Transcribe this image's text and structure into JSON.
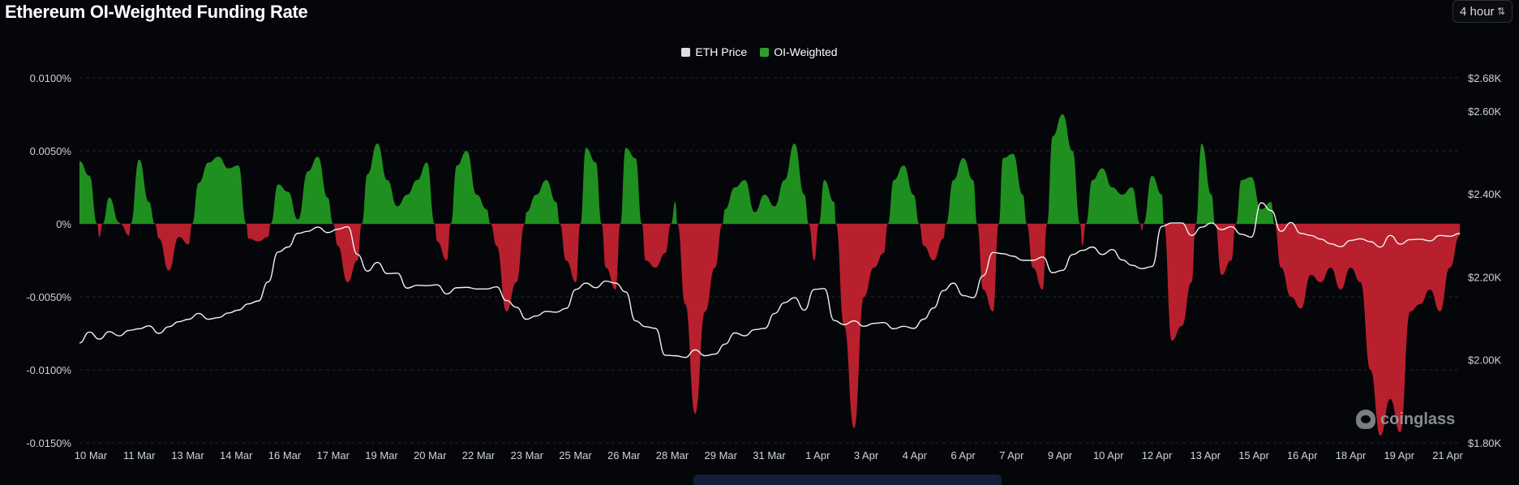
{
  "page": {
    "title": "Ethereum OI-Weighted Funding Rate",
    "interval": "4 hour",
    "watermark": "coinglass"
  },
  "legend": [
    {
      "label": "ETH Price",
      "color": "#e0e0e0"
    },
    {
      "label": "OI-Weighted",
      "color": "#2e9e2e"
    }
  ],
  "colors": {
    "positive": "#1f8f1f",
    "negative": "#b8202e",
    "price_line": "#f2f2f2",
    "grid": "#23262d"
  },
  "chart_data": {
    "type": "area",
    "x_ticks": [
      "10 Mar",
      "11 Mar",
      "13 Mar",
      "14 Mar",
      "16 Mar",
      "17 Mar",
      "19 Mar",
      "20 Mar",
      "22 Mar",
      "23 Mar",
      "25 Mar",
      "26 Mar",
      "28 Mar",
      "29 Mar",
      "31 Mar",
      "1 Apr",
      "3 Apr",
      "4 Apr",
      "6 Apr",
      "7 Apr",
      "9 Apr",
      "10 Apr",
      "12 Apr",
      "13 Apr",
      "15 Apr",
      "16 Apr",
      "18 Apr",
      "19 Apr",
      "21 Apr"
    ],
    "y_left_ticks": [
      "0.0100%",
      "0.0050%",
      "0%",
      "-0.0050%",
      "-0.0100%",
      "-0.0150%"
    ],
    "y_left_values": [
      0.01,
      0.005,
      0,
      -0.005,
      -0.01,
      -0.015
    ],
    "y_left_range": [
      -0.015,
      0.01
    ],
    "y_right_ticks": [
      "$2.68K",
      "$2.60K",
      "$2.40K",
      "$2.20K",
      "$2.00K",
      "$1.80K"
    ],
    "y_right_values": [
      2680,
      2600,
      2400,
      2200,
      2000,
      1800
    ],
    "y_right_range": [
      1800,
      2680
    ],
    "grid": true,
    "legend_position": "top-center",
    "series": [
      {
        "name": "OI-Weighted",
        "unit": "%",
        "values": [
          0.0043,
          0.0033,
          -0.0009,
          0.0018,
          0.0001,
          -0.0008,
          0.0044,
          0.0015,
          -0.001,
          -0.0032,
          -0.0009,
          -0.0014,
          0.0028,
          0.0042,
          0.0046,
          0.0038,
          0.004,
          -0.001,
          -0.0012,
          -0.0009,
          0.0027,
          0.0022,
          0.0003,
          0.0036,
          0.0046,
          0.0018,
          -0.0015,
          -0.004,
          -0.0025,
          0.0034,
          0.0055,
          0.003,
          0.0012,
          0.002,
          0.003,
          0.0042,
          -0.0012,
          -0.0025,
          0.004,
          0.005,
          0.002,
          0.001,
          -0.0015,
          -0.006,
          -0.004,
          0.0008,
          0.002,
          0.003,
          0.0015,
          -0.0025,
          -0.004,
          0.0052,
          0.0042,
          -0.003,
          -0.0045,
          0.0052,
          0.0045,
          -0.0025,
          -0.003,
          -0.002,
          0.0015,
          -0.0055,
          -0.013,
          -0.006,
          -0.003,
          0.001,
          0.0025,
          0.003,
          0.0008,
          0.002,
          0.0012,
          0.003,
          0.0055,
          0.002,
          -0.0025,
          0.003,
          0.0015,
          -0.007,
          -0.014,
          -0.005,
          -0.003,
          -0.002,
          0.003,
          0.004,
          0.002,
          -0.0015,
          -0.0025,
          -0.001,
          0.003,
          0.0045,
          0.003,
          -0.0045,
          -0.006,
          0.0045,
          0.0048,
          0.002,
          -0.003,
          -0.0045,
          0.006,
          0.0075,
          0.005,
          -0.0015,
          0.003,
          0.0038,
          0.0025,
          0.002,
          0.0025,
          -0.0005,
          0.0033,
          0.002,
          -0.008,
          -0.007,
          -0.004,
          0.0055,
          0.002,
          -0.0035,
          -0.0025,
          0.003,
          0.0032,
          0.001,
          0.0015,
          -0.003,
          -0.005,
          -0.0058,
          -0.0035,
          -0.004,
          -0.003,
          -0.0045,
          -0.003,
          -0.004,
          -0.01,
          -0.0145,
          -0.012,
          -0.0143,
          -0.006,
          -0.0055,
          -0.0045,
          -0.006,
          -0.003,
          -0.0008
        ]
      },
      {
        "name": "ETH Price",
        "unit": "USD",
        "values": [
          2041,
          2067,
          2050,
          2068,
          2058,
          2071,
          2075,
          2082,
          2064,
          2080,
          2092,
          2098,
          2112,
          2098,
          2102,
          2113,
          2120,
          2135,
          2142,
          2188,
          2260,
          2272,
          2305,
          2310,
          2320,
          2307,
          2315,
          2321,
          2254,
          2214,
          2235,
          2208,
          2209,
          2173,
          2180,
          2179,
          2181,
          2159,
          2174,
          2175,
          2171,
          2171,
          2176,
          2143,
          2127,
          2098,
          2106,
          2117,
          2115,
          2124,
          2170,
          2185,
          2174,
          2190,
          2185,
          2164,
          2094,
          2080,
          2076,
          2011,
          2010,
          2006,
          2024,
          2010,
          2014,
          2038,
          2065,
          2058,
          2073,
          2076,
          2112,
          2138,
          2150,
          2120,
          2170,
          2172,
          2095,
          2085,
          2094,
          2081,
          2088,
          2090,
          2075,
          2081,
          2076,
          2098,
          2125,
          2167,
          2185,
          2155,
          2150,
          2203,
          2259,
          2256,
          2250,
          2240,
          2240,
          2248,
          2210,
          2216,
          2254,
          2264,
          2272,
          2254,
          2266,
          2241,
          2228,
          2220,
          2225,
          2322,
          2330,
          2330,
          2300,
          2320,
          2330,
          2314,
          2321,
          2303,
          2296,
          2379,
          2360,
          2310,
          2331,
          2305,
          2300,
          2291,
          2280,
          2273,
          2288,
          2292,
          2285,
          2272,
          2300,
          2279,
          2290,
          2291,
          2287,
          2300,
          2298,
          2305
        ]
      }
    ]
  }
}
